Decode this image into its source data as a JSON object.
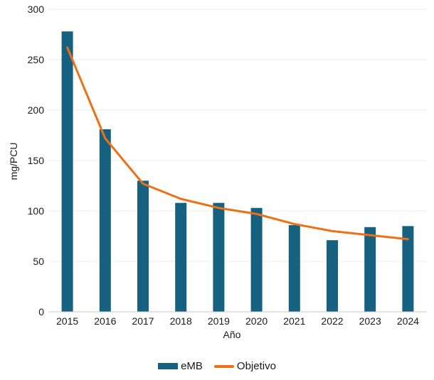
{
  "chart_data": {
    "type": "bar",
    "title": "",
    "xlabel": "Año",
    "ylabel": "mg/PCU",
    "categories": [
      "2015",
      "2016",
      "2017",
      "2018",
      "2019",
      "2020",
      "2021",
      "2022",
      "2023",
      "2024"
    ],
    "series": [
      {
        "name": "eMB",
        "type": "bar",
        "color": "#16617f",
        "values": [
          278,
          181,
          130,
          108,
          108,
          103,
          86,
          71,
          84,
          85
        ]
      },
      {
        "name": "Objetivo",
        "type": "line",
        "color": "#ed7014",
        "values": [
          262,
          172,
          127,
          112,
          103,
          97,
          87,
          80,
          76,
          72
        ]
      }
    ],
    "ylim": [
      0,
      300
    ],
    "ytick_step": 50,
    "grid": "horizontal",
    "legend_position": "bottom"
  },
  "style": {
    "grid_color": "#ebebeb",
    "axis_line_color": "#c9c9c9",
    "text_color": "#1a1a1a",
    "background_color": "#ffffff"
  }
}
